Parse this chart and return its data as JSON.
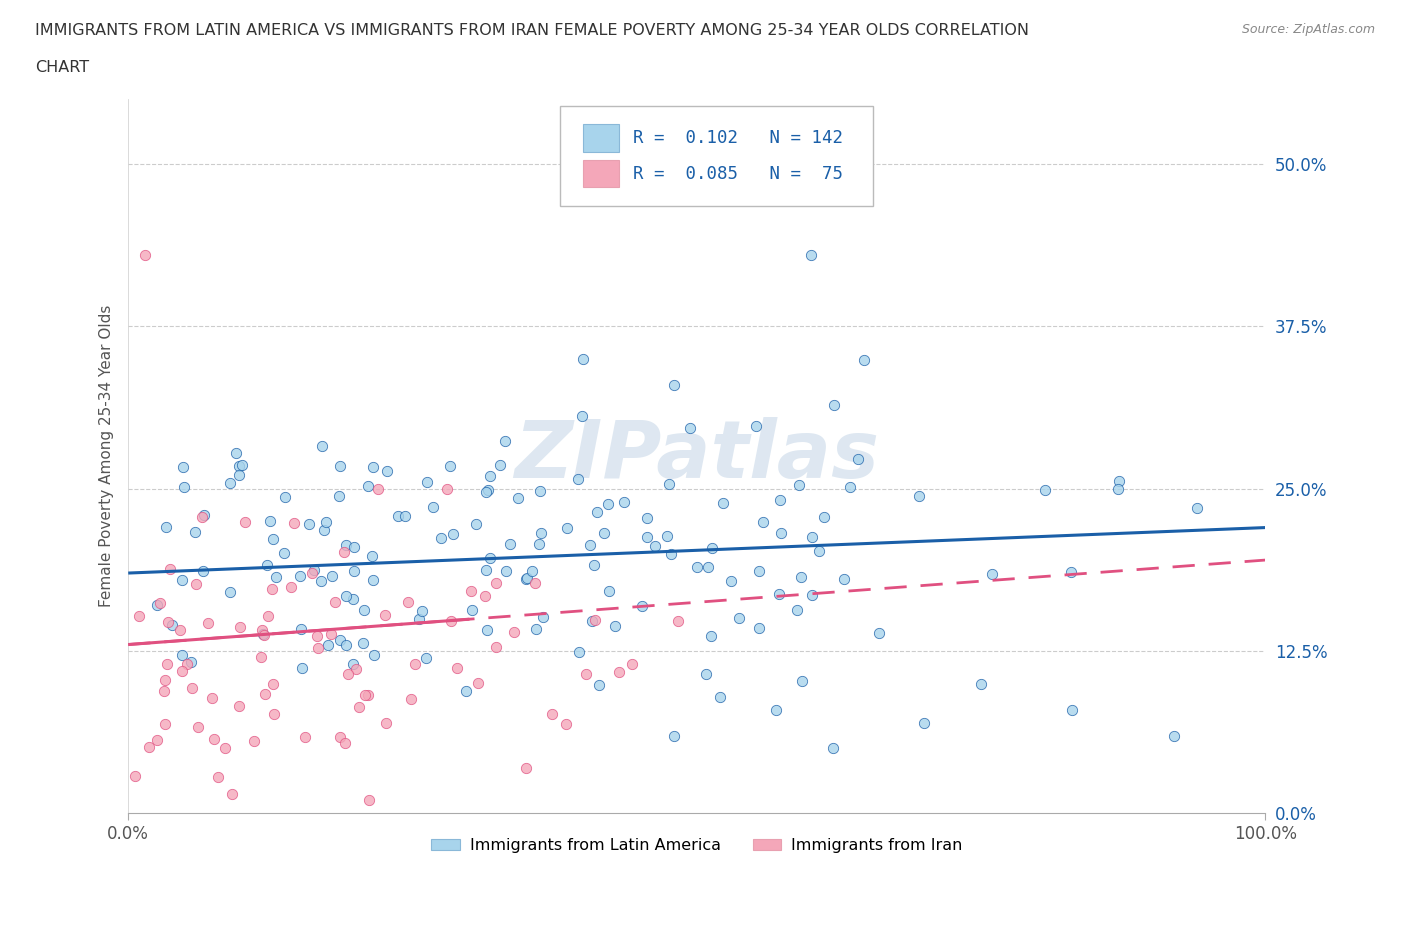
{
  "title_line1": "IMMIGRANTS FROM LATIN AMERICA VS IMMIGRANTS FROM IRAN FEMALE POVERTY AMONG 25-34 YEAR OLDS CORRELATION",
  "title_line2": "CHART",
  "source": "Source: ZipAtlas.com",
  "ylabel": "Female Poverty Among 25-34 Year Olds",
  "xlim": [
    0.0,
    1.0
  ],
  "ylim": [
    0.0,
    0.55
  ],
  "yticks": [
    0.0,
    0.125,
    0.25,
    0.375,
    0.5
  ],
  "ytick_labels": [
    "0.0%",
    "12.5%",
    "25.0%",
    "37.5%",
    "50.0%"
  ],
  "xticks": [
    0.0,
    1.0
  ],
  "xtick_labels": [
    "0.0%",
    "100.0%"
  ],
  "legend_labels": [
    "Immigrants from Latin America",
    "Immigrants from Iran"
  ],
  "color_latin": "#a8d4ec",
  "color_iran": "#f4a7b9",
  "line_color_latin": "#1a5fa8",
  "line_color_iran": "#e05080",
  "watermark": "ZIPatlas",
  "R_latin": 0.102,
  "N_latin": 142,
  "R_iran": 0.085,
  "N_iran": 75,
  "watermark_color": "#c8d8e8"
}
